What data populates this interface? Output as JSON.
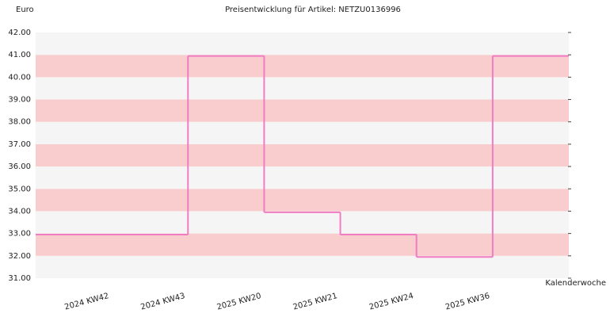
{
  "chart_data": {
    "type": "step",
    "title": "Preisentwicklung für Artikel: NETZU0136996",
    "y_label": "Euro",
    "x_label": "Kalenderwoche",
    "categories": [
      "2024 KW42",
      "2024 KW43",
      "2025 KW20",
      "2025 KW21",
      "2025 KW24",
      "2025 KW36"
    ],
    "values": [
      32.95,
      40.95,
      33.95,
      32.95,
      31.95,
      40.95
    ],
    "color": "#f07cc4",
    "band_colors": [
      "#f5f5f5",
      "#f9cdcd"
    ],
    "ylim": [
      31,
      42
    ],
    "yticks": [
      {
        "value": 31,
        "label": "31.00"
      },
      {
        "value": 32,
        "label": "32.00"
      },
      {
        "value": 33,
        "label": "33.00"
      },
      {
        "value": 34,
        "label": "34.00"
      },
      {
        "value": 35,
        "label": "35.00"
      },
      {
        "value": 36,
        "label": "36.00"
      },
      {
        "value": 37,
        "label": "37.00"
      },
      {
        "value": 38,
        "label": "38.00"
      },
      {
        "value": 39,
        "label": "39.00"
      },
      {
        "value": 40,
        "label": "40.00"
      },
      {
        "value": 41,
        "label": "41.00"
      },
      {
        "value": 42,
        "label": "42.00"
      }
    ]
  }
}
